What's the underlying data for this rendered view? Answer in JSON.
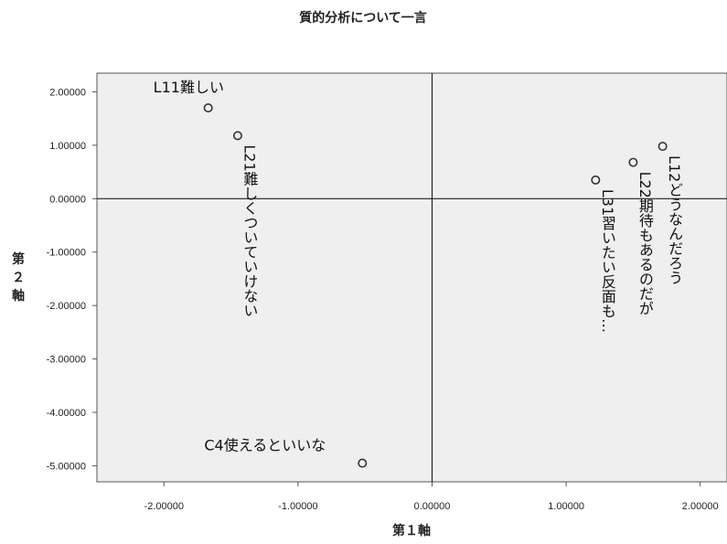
{
  "chart_data": {
    "type": "scatter",
    "title": "質的分析について一言",
    "xlabel": "第１軸",
    "ylabel": [
      "第",
      "２",
      "軸"
    ],
    "xlim": [
      -2.5,
      2.2
    ],
    "ylim": [
      -5.3,
      2.35
    ],
    "xticks": [
      -2.0,
      -1.0,
      0.0,
      1.0,
      2.0
    ],
    "xtick_labels": [
      "-2.00000",
      "-1.00000",
      "0.00000",
      "1.00000",
      "2.00000"
    ],
    "yticks": [
      2.0,
      1.0,
      0.0,
      -1.0,
      -2.0,
      -3.0,
      -4.0,
      -5.0
    ],
    "ytick_labels": [
      "2.00000",
      "1.00000",
      "0.00000",
      "-1.00000",
      "-2.00000",
      "-3.00000",
      "-4.00000",
      "-5.00000"
    ],
    "reference_lines": {
      "x": 0,
      "y": 0
    },
    "background": "#efefef",
    "marker_color": "#333333",
    "points": [
      {
        "label": "L11難しい",
        "x": -1.67,
        "y": 1.7,
        "label_orientation": "horizontal"
      },
      {
        "label": "L21難しくついていけない",
        "x": -1.45,
        "y": 1.18,
        "label_orientation": "vertical"
      },
      {
        "label": "C4使えるといいな",
        "x": -0.52,
        "y": -4.95,
        "label_orientation": "horizontal"
      },
      {
        "label": "L31習いたい反面も…",
        "x": 1.22,
        "y": 0.35,
        "label_orientation": "vertical"
      },
      {
        "label": "L22期待もあるのだが",
        "x": 1.5,
        "y": 0.68,
        "label_orientation": "vertical"
      },
      {
        "label": "L12どうなんだろう",
        "x": 1.72,
        "y": 0.98,
        "label_orientation": "vertical"
      }
    ]
  }
}
